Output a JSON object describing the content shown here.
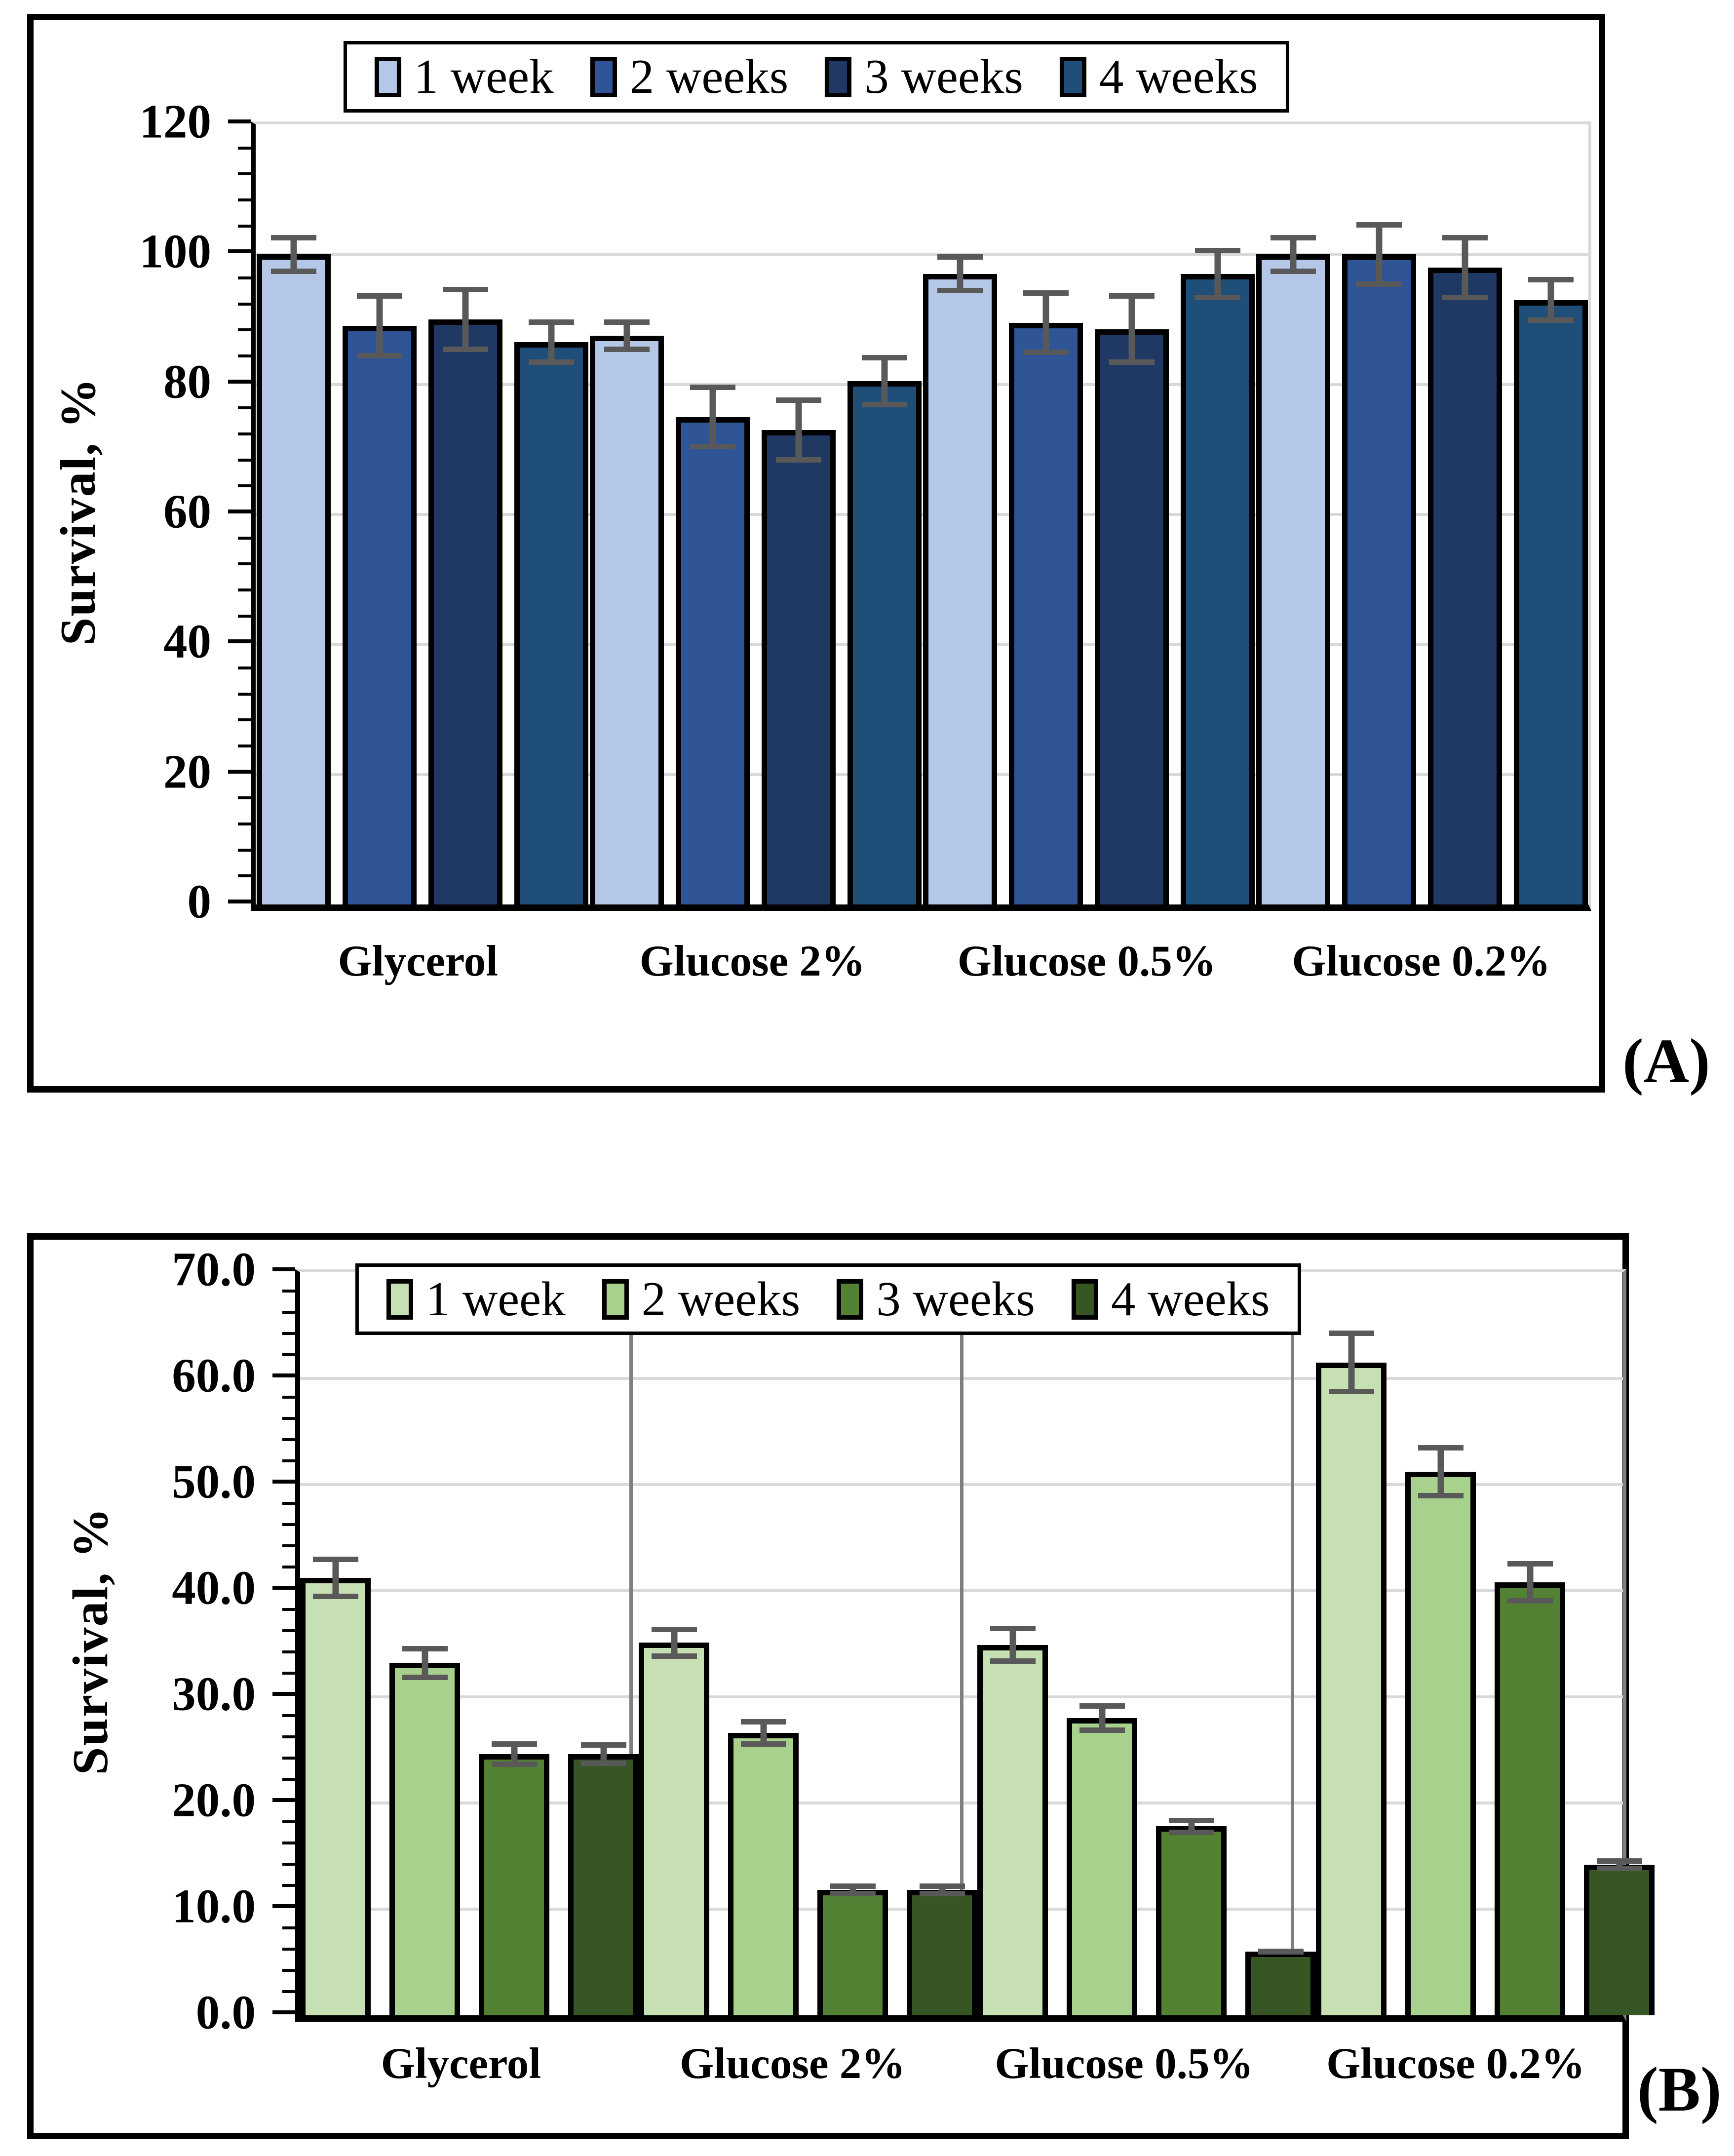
{
  "chart_data": [
    {
      "type": "bar",
      "panel_label": "(A)",
      "ylabel": "Survival, %",
      "ylim": [
        0,
        120
      ],
      "y_major_step": 20,
      "y_minor_step": 4,
      "tick_decimals": 0,
      "grid": "horizontal",
      "legend_position": "top-center",
      "categories": [
        "Glycerol",
        "Glucose 2%",
        "Glucose 0.5%",
        "Glucose 0.2%"
      ],
      "series": [
        {
          "name": "1 week",
          "color": "#b4c7e7",
          "values": [
            100,
            87.5,
            97,
            100
          ],
          "errors": [
            3,
            2.5,
            3,
            3
          ]
        },
        {
          "name": "2 weeks",
          "color": "#2f5597",
          "values": [
            89,
            75,
            89.5,
            100
          ],
          "errors": [
            5,
            5,
            5,
            5
          ]
        },
        {
          "name": "3 weeks",
          "color": "#203864",
          "values": [
            90,
            73,
            88.5,
            98
          ],
          "errors": [
            5,
            5,
            5.5,
            5
          ]
        },
        {
          "name": "4 weeks",
          "color": "#1f4e79",
          "values": [
            86.5,
            80.5,
            97,
            93
          ],
          "errors": [
            3.5,
            4,
            4,
            3.5
          ]
        }
      ]
    },
    {
      "type": "bar",
      "panel_label": "(B)",
      "ylabel": "Survival, %",
      "ylim": [
        0,
        70
      ],
      "y_major_step": 10,
      "y_minor_step": 2,
      "tick_decimals": 1,
      "grid": "horizontal+vertical",
      "legend_position": "top-center",
      "categories": [
        "Glycerol",
        "Glucose 2%",
        "Glucose 0.5%",
        "Glucose 0.2%"
      ],
      "series": [
        {
          "name": "1 week",
          "color": "#c6e0b4",
          "values": [
            41.2,
            35.1,
            34.9,
            61.5
          ],
          "errors": [
            2.0,
            1.5,
            1.8,
            3.0
          ]
        },
        {
          "name": "2 weeks",
          "color": "#a9d18e",
          "values": [
            33.2,
            26.6,
            28.0,
            51.2
          ],
          "errors": [
            1.6,
            1.3,
            1.4,
            2.5
          ]
        },
        {
          "name": "3 weeks",
          "color": "#548235",
          "values": [
            24.6,
            11.8,
            17.8,
            40.8
          ],
          "errors": [
            1.2,
            0.6,
            0.8,
            2.0
          ]
        },
        {
          "name": "4 weeks",
          "color": "#375623",
          "values": [
            24.6,
            11.8,
            6.0,
            14.2
          ],
          "errors": [
            1.1,
            0.6,
            0.3,
            0.6
          ]
        }
      ]
    }
  ],
  "styles": {
    "gridline_color": "#d9d9d9",
    "separator_color": "#7f7f7f",
    "error_bar_color": "#595959",
    "bar_outline_color": "#000000",
    "background": "#ffffff"
  }
}
